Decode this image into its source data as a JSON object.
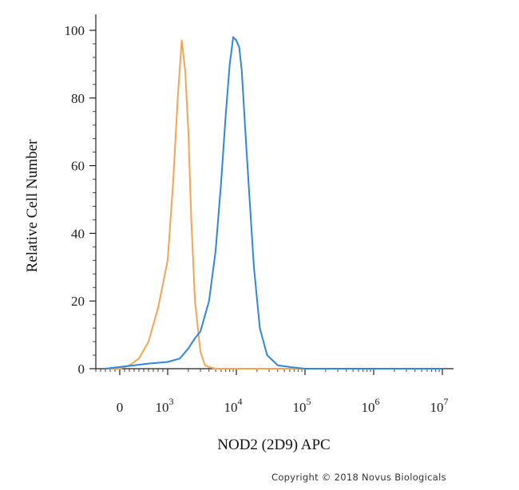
{
  "chart_data": {
    "type": "line",
    "title": "",
    "xlabel": "NOD2 (2D9) APC",
    "ylabel": "Relative Cell Number",
    "x_scale": "biexponential",
    "xlim": [
      -1000,
      10000000
    ],
    "ylim": [
      0,
      100
    ],
    "x_ticks": [
      {
        "base": "0",
        "exp": "",
        "value": 0
      },
      {
        "base": "10",
        "exp": "3",
        "value": 1000
      },
      {
        "base": "10",
        "exp": "4",
        "value": 10000
      },
      {
        "base": "10",
        "exp": "5",
        "value": 100000
      },
      {
        "base": "10",
        "exp": "6",
        "value": 1000000
      },
      {
        "base": "10",
        "exp": "7",
        "value": 10000000
      }
    ],
    "y_ticks": [
      "0",
      "20",
      "40",
      "60",
      "80",
      "100"
    ],
    "grid": false,
    "legend": "none",
    "series": [
      {
        "color": "#f5a455",
        "x": [
          -300,
          0,
          200,
          400,
          600,
          800,
          1000,
          1200,
          1400,
          1600,
          1800,
          2000,
          2200,
          2500,
          3000,
          3500,
          4000,
          5000,
          10000,
          100000,
          10000000
        ],
        "y": [
          0,
          0,
          1,
          3,
          8,
          18,
          32,
          55,
          80,
          97,
          88,
          70,
          45,
          20,
          5,
          1,
          0.5,
          0,
          0,
          0,
          0
        ]
      },
      {
        "color": "#2f86e0",
        "x": [
          -300,
          0,
          300,
          600,
          1000,
          1500,
          2000,
          2500,
          3000,
          4000,
          5000,
          6000,
          7000,
          8000,
          9000,
          10000,
          11000,
          12000,
          14000,
          18000,
          22000,
          28000,
          40000,
          60000,
          100000,
          1000000,
          10000000
        ],
        "y": [
          0,
          0.5,
          1,
          1.5,
          2,
          3,
          6,
          9,
          11,
          20,
          35,
          55,
          75,
          90,
          98,
          97,
          95,
          88,
          65,
          30,
          12,
          4,
          1,
          0.5,
          0,
          0,
          0
        ]
      }
    ]
  },
  "footer": {
    "copyright": "Copyright © 2018 Novus Biologicals"
  }
}
